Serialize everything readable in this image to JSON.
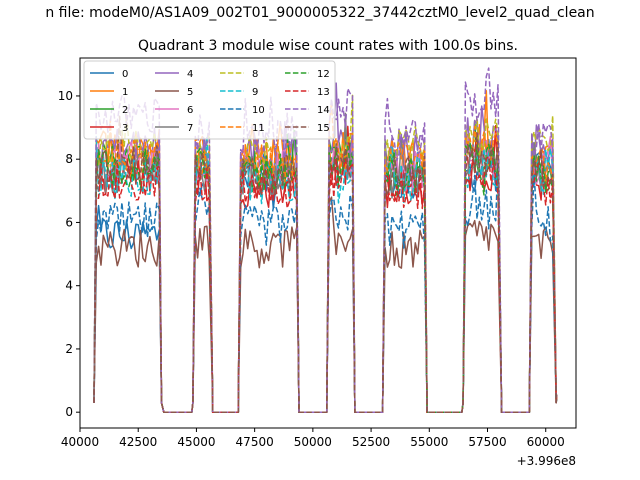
{
  "figure": {
    "suptitle": "n file: modeM0/AS1A09_002T01_9000005322_37442cztM0_level2_quad_clean",
    "title": "Quadrant 3 module wise count rates with 100.0s bins.",
    "offset_label": "+3.996e8"
  },
  "chart_data": {
    "type": "line",
    "title": "Quadrant 3 module wise count rates with 100.0s bins.",
    "xlabel": "",
    "ylabel": "",
    "x_offset": 399600000,
    "xlim": [
      40000,
      61300
    ],
    "ylim": [
      -0.5,
      11.2
    ],
    "x_ticks": [
      40000,
      42500,
      45000,
      47500,
      50000,
      52500,
      55000,
      57500,
      60000
    ],
    "x_tick_labels": [
      "40000",
      "42500",
      "45000",
      "47500",
      "50000",
      "52500",
      "55000",
      "57500",
      "60000"
    ],
    "y_ticks": [
      0,
      2,
      4,
      6,
      8,
      10
    ],
    "y_tick_labels": [
      "0",
      "2",
      "4",
      "6",
      "8",
      "10"
    ],
    "grid": false,
    "legend": {
      "position": "top-left",
      "columns": 4
    },
    "segments": [
      {
        "start": 40700,
        "end": 43400
      },
      {
        "start": 44950,
        "end": 45600
      },
      {
        "start": 46900,
        "end": 49300
      },
      {
        "start": 50700,
        "end": 51700
      },
      {
        "start": 53100,
        "end": 54800
      },
      {
        "start": 56550,
        "end": 58000
      },
      {
        "start": 59400,
        "end": 60350
      }
    ],
    "gaps": [
      {
        "start": 43600,
        "end": 44800
      },
      {
        "start": 45700,
        "end": 46800
      },
      {
        "start": 49400,
        "end": 50600
      },
      {
        "start": 51800,
        "end": 53000
      },
      {
        "start": 54900,
        "end": 56400
      },
      {
        "start": 58100,
        "end": 59300
      }
    ],
    "series": [
      {
        "name": "0",
        "color": "#1f77b4",
        "dash": "solid",
        "level": 7.6,
        "segment_levels": [
          5.6,
          7.5,
          7.4,
          7.8,
          7.3,
          7.6,
          7.6
        ]
      },
      {
        "name": "1",
        "color": "#ff7f0e",
        "dash": "solid",
        "level": 8.2,
        "segment_levels": [
          8.3,
          8.0,
          8.0,
          8.3,
          8.0,
          8.3,
          8.1
        ]
      },
      {
        "name": "2",
        "color": "#2ca02c",
        "dash": "solid",
        "level": 7.8,
        "segment_levels": [
          7.9,
          7.8,
          7.6,
          8.0,
          7.5,
          8.0,
          7.6
        ]
      },
      {
        "name": "3",
        "color": "#d62728",
        "dash": "solid",
        "level": 7.4,
        "segment_levels": [
          7.5,
          7.3,
          7.1,
          7.6,
          7.1,
          7.6,
          7.3
        ]
      },
      {
        "name": "4",
        "color": "#9467bd",
        "dash": "solid",
        "level": 8.5,
        "segment_levels": [
          8.4,
          8.3,
          8.2,
          8.6,
          8.2,
          8.7,
          8.4
        ]
      },
      {
        "name": "5",
        "color": "#8c564b",
        "dash": "solid",
        "level": 5.3,
        "segment_levels": [
          5.2,
          5.5,
          5.2,
          5.6,
          5.1,
          5.6,
          5.2
        ]
      },
      {
        "name": "6",
        "color": "#e377c2",
        "dash": "solid",
        "level": 7.9,
        "segment_levels": [
          7.9,
          7.6,
          7.7,
          8.0,
          7.6,
          8.0,
          7.8
        ]
      },
      {
        "name": "7",
        "color": "#7f7f7f",
        "dash": "solid",
        "level": 7.7,
        "segment_levels": [
          7.6,
          7.6,
          7.5,
          7.8,
          7.4,
          7.8,
          7.6
        ]
      },
      {
        "name": "8",
        "color": "#bcbd22",
        "dash": "dashed",
        "level": 8.4,
        "segment_levels": [
          8.3,
          8.3,
          8.2,
          8.6,
          8.3,
          8.7,
          8.4
        ]
      },
      {
        "name": "9",
        "color": "#17becf",
        "dash": "dashed",
        "level": 7.5,
        "segment_levels": [
          7.4,
          7.4,
          7.3,
          7.6,
          7.2,
          7.7,
          7.4
        ]
      },
      {
        "name": "10",
        "color": "#1f77b4",
        "dash": "dashed",
        "level": 6.0,
        "segment_levels": [
          6.0,
          6.1,
          5.9,
          6.3,
          5.8,
          6.4,
          5.9
        ]
      },
      {
        "name": "11",
        "color": "#ff7f0e",
        "dash": "dashed",
        "level": 8.1,
        "segment_levels": [
          8.0,
          8.0,
          7.9,
          8.2,
          7.9,
          8.3,
          8.0
        ]
      },
      {
        "name": "12",
        "color": "#2ca02c",
        "dash": "dashed",
        "level": 7.7,
        "segment_levels": [
          7.7,
          7.6,
          7.6,
          7.8,
          7.5,
          7.9,
          7.6
        ]
      },
      {
        "name": "13",
        "color": "#d62728",
        "dash": "dashed",
        "level": 7.3,
        "segment_levels": [
          7.2,
          7.2,
          7.1,
          7.4,
          7.0,
          7.5,
          7.2
        ]
      },
      {
        "name": "14",
        "color": "#9467bd",
        "dash": "dashed",
        "level": 8.8,
        "segment_levels": [
          9.4,
          8.8,
          8.6,
          9.6,
          8.6,
          9.8,
          8.6
        ]
      },
      {
        "name": "15",
        "color": "#8c564b",
        "dash": "dashed",
        "level": 7.8,
        "segment_levels": [
          7.8,
          7.6,
          7.5,
          7.9,
          7.5,
          8.0,
          7.7
        ]
      }
    ]
  }
}
